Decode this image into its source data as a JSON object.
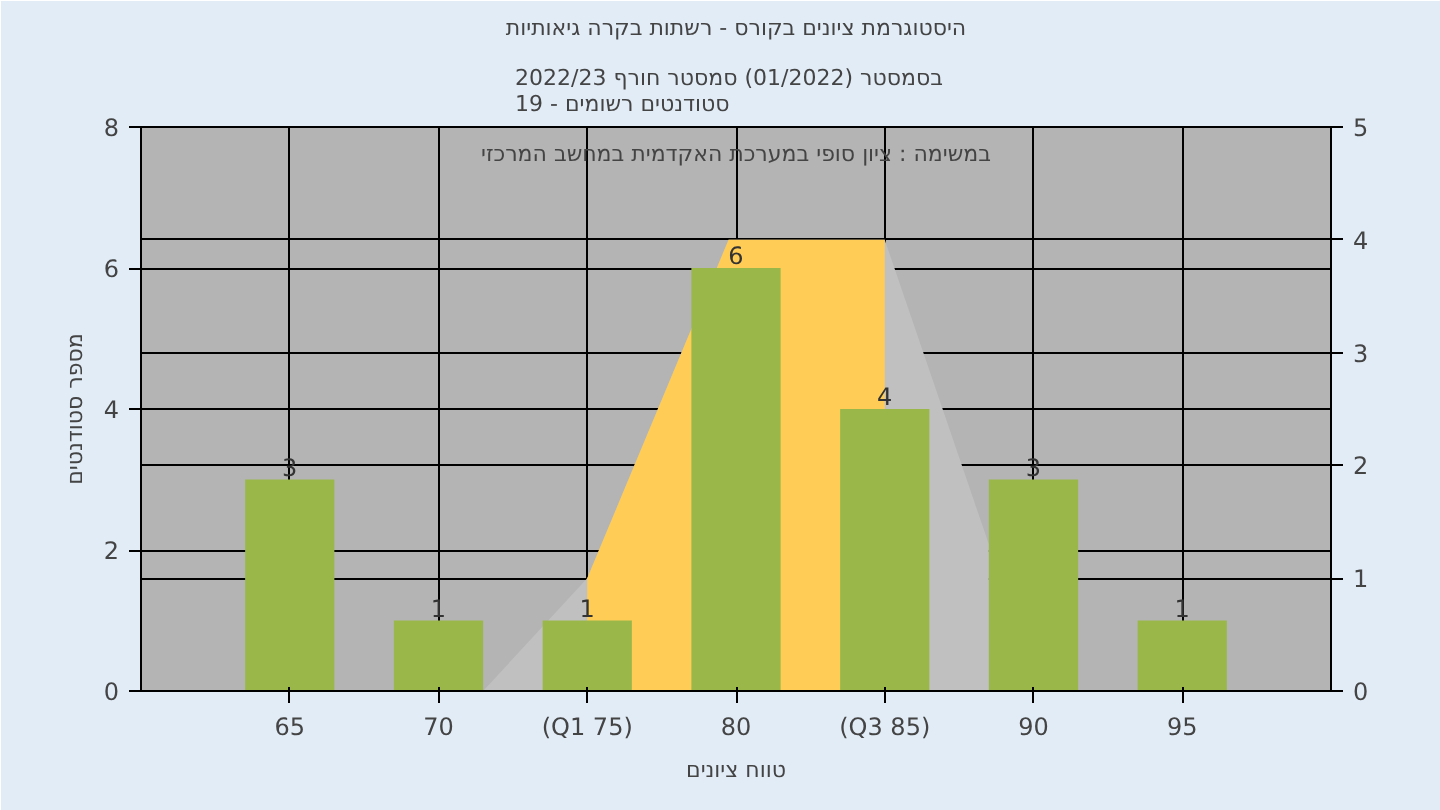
{
  "chart_data": {
    "type": "bar",
    "title": "היסטוגרמת ציונים בקורס - רשתות בקרה גיאותיות",
    "subtitle": "בסמסטר  (01/2022)  סמסטר חורף 2022/23\nסטודנטים רשומים - 19",
    "xlabel": "טווח ציונים",
    "ylabel": "מספר סטודנטים",
    "annotations": [
      "במשימה : ציון סופי במערכת האקדמית במחשב המרכזי"
    ],
    "x": [
      65,
      70,
      75,
      80,
      85,
      90,
      95
    ],
    "series": [
      {
        "type": "area",
        "axis": "y2",
        "color": "#c0c0c0",
        "x": [
          71.5,
          75,
          79.75,
          85,
          88.5
        ],
        "values": [
          0,
          1,
          4,
          4,
          1.3
        ]
      },
      {
        "type": "area",
        "axis": "y2",
        "color": "#ffcc55",
        "x": [
          75,
          79.75,
          85
        ],
        "values": [
          1,
          4,
          4
        ]
      },
      {
        "color": "#9ab84a",
        "values": [
          3,
          1,
          1,
          6,
          4,
          3,
          1
        ],
        "value_labels": [
          "3",
          "1",
          "1",
          "6",
          "4",
          "3",
          "1"
        ]
      }
    ],
    "xlim": [
      60,
      100
    ],
    "xticks": [
      65,
      70,
      {
        "value": 75,
        "label": "(Q1 75)"
      },
      80,
      {
        "value": 85,
        "label": "(Q3 85)"
      },
      90,
      95
    ],
    "ylim": [
      0,
      8
    ],
    "yticks": [
      0,
      2,
      4,
      6,
      8
    ],
    "y2lim": [
      0,
      5
    ],
    "y2ticks": [
      0,
      1,
      2,
      3,
      4,
      5
    ],
    "grid": true
  }
}
